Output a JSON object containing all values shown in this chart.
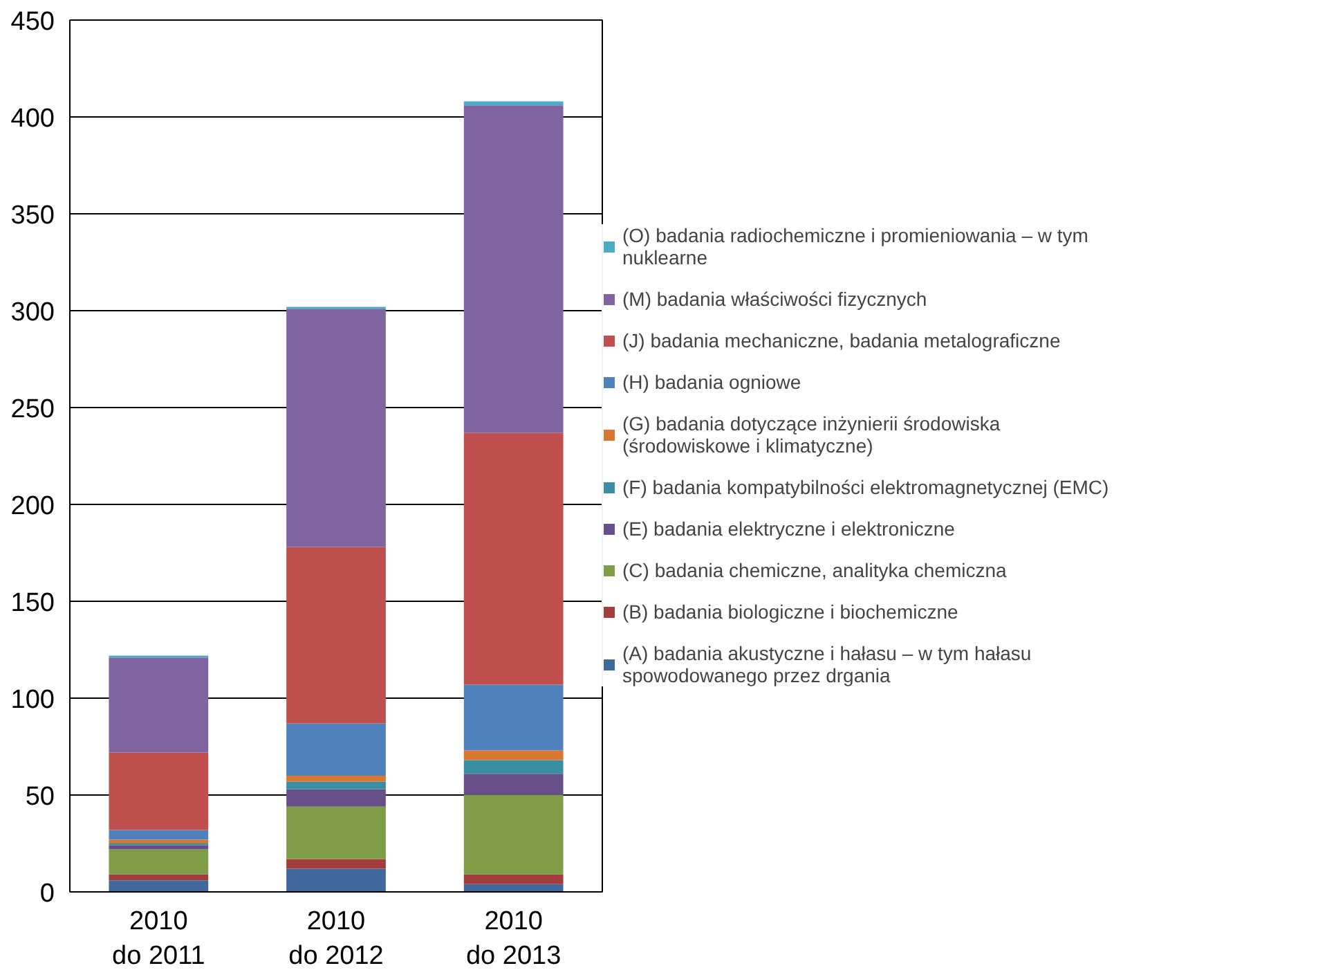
{
  "chart_data": {
    "type": "bar",
    "stacked": true,
    "categories": [
      "2010 do 2011",
      "2010 do 2012",
      "2010 do 2013"
    ],
    "series": [
      {
        "name": "(A) badania akustyczne i hałasu – w tym hałasu spowodowanego przez drgania",
        "color": "#41689c",
        "values": [
          6,
          12,
          4
        ]
      },
      {
        "name": "(B) badania biologiczne i biochemiczne",
        "color": "#a33c3c",
        "values": [
          3,
          5,
          5
        ]
      },
      {
        "name": "(C) badania chemiczne, analityka chemiczna",
        "color": "#7f9c46",
        "values": [
          13,
          27,
          41
        ]
      },
      {
        "name": "(E) badania elektryczne i elektroniczne",
        "color": "#674f8a",
        "values": [
          2,
          9,
          11
        ]
      },
      {
        "name": "(F) badania kompatybilności elektromagnetycznej (EMC)",
        "color": "#3a8ea3",
        "values": [
          1,
          4,
          7
        ]
      },
      {
        "name": "(G) badania dotyczące inżynierii środowiska (środowiskowe i klimatyczne)",
        "color": "#d9772e",
        "values": [
          2,
          3,
          5
        ]
      },
      {
        "name": "(H) badania ogniowe",
        "color": "#4f81bd",
        "values": [
          5,
          27,
          34
        ]
      },
      {
        "name": "(J) badania mechaniczne, badania metalograficzne",
        "color": "#c0504d",
        "values": [
          40,
          91,
          130
        ]
      },
      {
        "name": "(M) badania właściwości fizycznych",
        "color": "#8064a2",
        "values": [
          49,
          123,
          169
        ]
      },
      {
        "name": "(O) badania radiochemiczne i promieniowania – w tym nuklearne",
        "color": "#4bacc6",
        "values": [
          1,
          1,
          2
        ]
      }
    ],
    "ylim": [
      0,
      450
    ],
    "yticks": [
      0,
      50,
      100,
      150,
      200,
      250,
      300,
      350,
      400,
      450
    ],
    "grid": "y",
    "legend": "right"
  }
}
